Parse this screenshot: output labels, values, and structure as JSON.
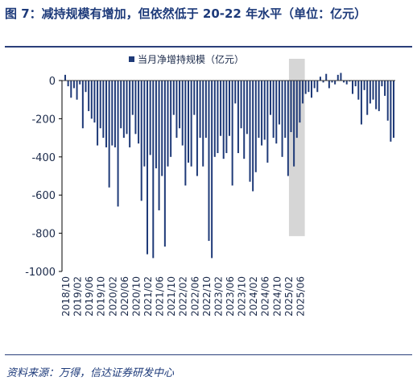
{
  "title": "图 7：减持规模有增加，但依然低于 20-22 年水平（单位：亿元）",
  "source": "资料来源：万得，信达证券研发中心",
  "chart_data": {
    "type": "bar",
    "legend": "当月净增持规模（亿元）",
    "legend_position": "top-center",
    "ylim": [
      -1000,
      0
    ],
    "yticks": [
      0,
      -200,
      -400,
      -600,
      -800,
      -1000
    ],
    "grid": false,
    "bar_color": "#1f3a78",
    "highlight_color": "#d6d6d6",
    "highlight_range": [
      "2025/03",
      "2025/07"
    ],
    "start": "2018/10",
    "xtick_labels": [
      "2018/10",
      "2019/02",
      "2019/06",
      "2019/10",
      "2020/02",
      "2020/06",
      "2020/10",
      "2021/02",
      "2021/06",
      "2021/10",
      "2022/02",
      "2022/06",
      "2022/10",
      "2023/02",
      "2023/06",
      "2023/10",
      "2024/02",
      "2024/06",
      "2024/10",
      "2025/02",
      "2025/06"
    ],
    "series": [
      {
        "values": [
          30,
          -30,
          -90,
          -40,
          -100,
          -20,
          -250,
          -60,
          -160,
          -200,
          -220,
          -340,
          -250,
          -300,
          -350,
          -560,
          -340,
          -350,
          -660,
          -250,
          -300,
          -280,
          -350,
          -180,
          -280,
          -330,
          -630,
          -450,
          -910,
          -390,
          -930,
          -460,
          -680,
          -500,
          -870,
          -450,
          -400,
          -180,
          -300,
          -250,
          -340,
          -550,
          -430,
          -450,
          -180,
          -500,
          -300,
          -450,
          -300,
          -840,
          -930,
          -400,
          -380,
          -290,
          -410,
          -380,
          -290,
          -550,
          -120,
          -380,
          -250,
          -410,
          -280,
          -530,
          -580,
          -480,
          -300,
          -340,
          -310,
          -430,
          -180,
          -300,
          -330,
          -230,
          -400,
          -300,
          -500,
          -270,
          -450,
          -300,
          -220,
          -120,
          -70,
          -60,
          -90,
          -40,
          -60,
          20,
          -10,
          35,
          -40,
          -10,
          -20,
          30,
          40,
          -10,
          -20,
          -5,
          -70,
          -30,
          -100,
          -230,
          -50,
          -180,
          -120,
          -100,
          -150,
          -160,
          -30,
          -80,
          -210,
          -320,
          -300
        ]
      }
    ]
  }
}
